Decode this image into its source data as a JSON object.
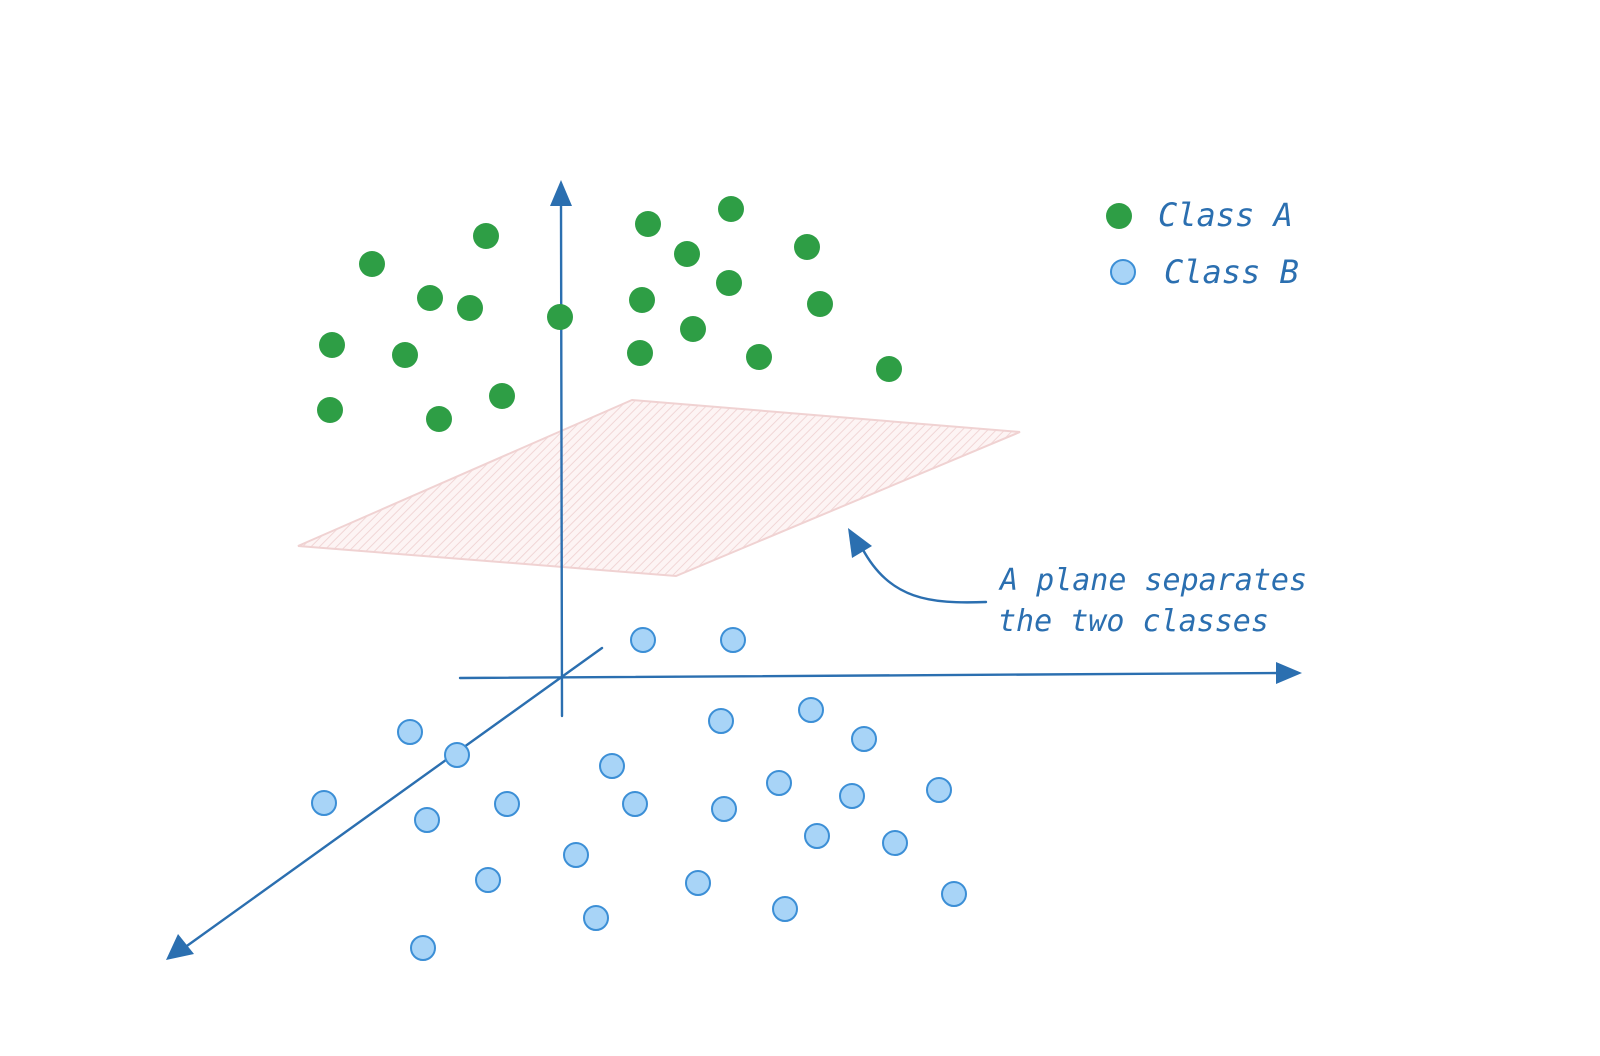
{
  "legend": {
    "items": [
      {
        "label": "Class A",
        "color": "#2e9e45"
      },
      {
        "label": "Class B",
        "color": "#a8d4f7"
      }
    ]
  },
  "annotation": {
    "lines": [
      "A plane separates",
      "the two classes"
    ]
  },
  "colors": {
    "axis": "#2b6fb0",
    "class_a_fill": "#2e9e45",
    "class_b_fill": "#a8d4f7",
    "class_b_stroke": "#3c8fd6",
    "plane_fill": "#fbeeee",
    "plane_stroke": "#f0d2d2",
    "text": "#2b6fb0"
  }
}
